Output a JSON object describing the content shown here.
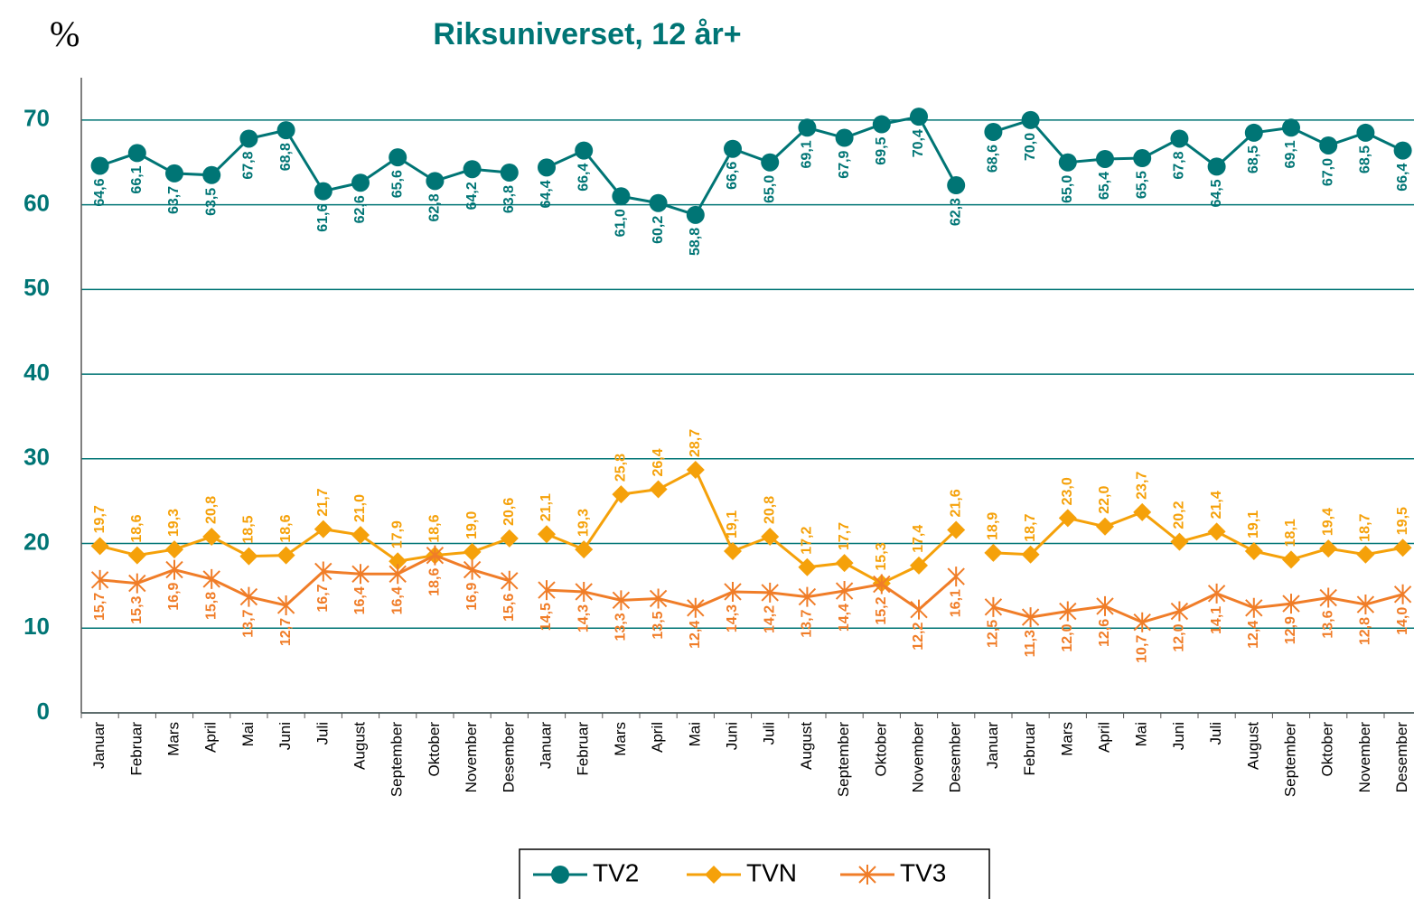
{
  "chart_data": {
    "type": "line",
    "title": "Riksuniverset, 12 år+",
    "ylabel": "%",
    "categories": [
      "Januar",
      "Februar",
      "Mars",
      "April",
      "Mai",
      "Juni",
      "Juli",
      "August",
      "September",
      "Oktober",
      "November",
      "Desember",
      "Januar",
      "Februar",
      "Mars",
      "April",
      "Mai",
      "Juni",
      "Juli",
      "August",
      "September",
      "Oktober",
      "November",
      "Desember",
      "Januar",
      "Februar",
      "Mars",
      "April",
      "Mai",
      "Juni",
      "Juli",
      "August",
      "September",
      "Oktober",
      "November",
      "Desember"
    ],
    "ylim": [
      0,
      75
    ],
    "yticks": [
      0,
      10,
      20,
      30,
      40,
      50,
      60,
      70
    ],
    "grid": true,
    "legend": "bottom",
    "series": [
      {
        "name": "TV2",
        "color": "#007575",
        "marker": "circle",
        "label_side": "below",
        "values": [
          64.6,
          66.1,
          63.7,
          63.5,
          67.8,
          68.8,
          61.6,
          62.6,
          65.6,
          62.8,
          64.2,
          63.8,
          64.4,
          66.4,
          61.0,
          60.2,
          58.8,
          66.6,
          65.0,
          69.1,
          67.9,
          69.5,
          70.4,
          62.3,
          68.6,
          70.0,
          65.0,
          65.4,
          65.5,
          67.8,
          64.5,
          68.5,
          69.1,
          67.0,
          68.5,
          66.4
        ],
        "value_labels": [
          "64,6",
          "66,1",
          "63,7",
          "63,5",
          "67,8",
          "68,8",
          "61,6",
          "62,6",
          "65,6",
          "62,8",
          "64,2",
          "63,8",
          "64,4",
          "66,4",
          "61,0",
          "60,2",
          "58,8",
          "66,6",
          "65,0",
          "69,1",
          "67,9",
          "69,5",
          "70,4",
          "62,3",
          "68,6",
          "70,0",
          "65,0",
          "65,4",
          "65,5",
          "67,8",
          "64,5",
          "68,5",
          "69,1",
          "67,0",
          "68,5",
          "66,4"
        ]
      },
      {
        "name": "TVN",
        "color": "#f5a10a",
        "marker": "diamond",
        "label_side": "above",
        "values": [
          19.7,
          18.6,
          19.3,
          20.8,
          18.5,
          18.6,
          21.7,
          21.0,
          17.9,
          18.6,
          19.0,
          20.6,
          21.1,
          19.3,
          25.8,
          26.4,
          28.7,
          19.1,
          20.8,
          17.2,
          17.7,
          15.3,
          17.4,
          21.6,
          18.9,
          18.7,
          23.0,
          22.0,
          23.7,
          20.2,
          21.4,
          19.1,
          18.1,
          19.4,
          18.7,
          19.5
        ],
        "value_labels": [
          "19,7",
          "18,6",
          "19,3",
          "20,8",
          "18,5",
          "18,6",
          "21,7",
          "21,0",
          "17,9",
          "18,6",
          "19,0",
          "20,6",
          "21,1",
          "19,3",
          "25,8",
          "26,4",
          "28,7",
          "19,1",
          "20,8",
          "17,2",
          "17,7",
          "15,3",
          "17,4",
          "21,6",
          "18,9",
          "18,7",
          "23,0",
          "22,0",
          "23,7",
          "20,2",
          "21,4",
          "19,1",
          "18,1",
          "19,4",
          "18,7",
          "19,5"
        ]
      },
      {
        "name": "TV3",
        "color": "#f07d28",
        "marker": "asterisk",
        "label_side": "below",
        "values": [
          15.7,
          15.3,
          16.9,
          15.8,
          13.7,
          12.7,
          16.7,
          16.4,
          16.4,
          18.6,
          16.9,
          15.6,
          14.5,
          14.3,
          13.3,
          13.5,
          12.4,
          14.3,
          14.2,
          13.7,
          14.4,
          15.2,
          12.2,
          16.1,
          12.5,
          11.3,
          12.0,
          12.6,
          10.7,
          12.0,
          14.1,
          12.4,
          12.9,
          13.6,
          12.8,
          14.0
        ],
        "value_labels": [
          "15,7",
          "15,3",
          "16,9",
          "15,8",
          "13,7",
          "12,7",
          "16,7",
          "16,4",
          "16,4",
          "18,6",
          "16,9",
          "15,6",
          "14,5",
          "14,3",
          "13,3",
          "13,5",
          "12,4",
          "14,3",
          "14,2",
          "13,7",
          "14,4",
          "15,2",
          "12,2",
          "16,1",
          "12,5",
          "11,3",
          "12,0",
          "12,6",
          "10,7",
          "12,0",
          "14,1",
          "12,4",
          "12,9",
          "13,6",
          "12,8",
          "14,0"
        ]
      }
    ]
  }
}
